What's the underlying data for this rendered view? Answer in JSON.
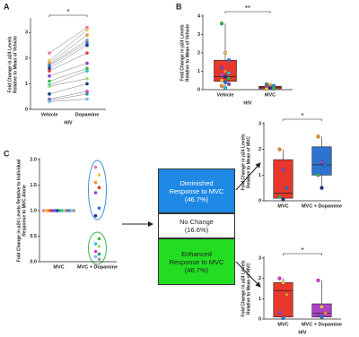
{
  "chart_data": [
    {
      "type": "line",
      "panel": "A",
      "categories": [
        "Vehicle",
        "Dopamine"
      ],
      "xlabel": "HIV",
      "ylabel": [
        "Fold Change in p24 Levels",
        "Relative to Mean of Vehicle"
      ],
      "ylim": [
        0,
        3.5
      ],
      "yticks": [
        0,
        1,
        2,
        3
      ],
      "annotation": "*",
      "series": [
        {
          "color": "#f06fb0",
          "values": [
            2.2,
            3.2
          ]
        },
        {
          "color": "#f2c94c",
          "values": [
            1.9,
            3.1
          ]
        },
        {
          "color": "#f28c28",
          "values": [
            1.8,
            2.9
          ]
        },
        {
          "color": "#9a9a9a",
          "values": [
            1.75,
            2.7
          ]
        },
        {
          "color": "#2f6fd6",
          "values": [
            1.7,
            2.6
          ]
        },
        {
          "color": "#1c2f8c",
          "values": [
            1.6,
            2.5
          ]
        },
        {
          "color": "#e23a2e",
          "values": [
            1.5,
            2.2
          ]
        },
        {
          "color": "#8e44c8",
          "values": [
            1.3,
            1.8
          ]
        },
        {
          "color": "#3cb44b",
          "values": [
            1.1,
            1.6
          ]
        },
        {
          "color": "#27c2d6",
          "values": [
            0.95,
            1.5
          ]
        },
        {
          "color": "#9be06b",
          "values": [
            0.9,
            1.2
          ]
        },
        {
          "color": "#123a7a",
          "values": [
            0.6,
            1.0
          ]
        },
        {
          "color": "#d63bd6",
          "values": [
            0.4,
            0.7
          ]
        },
        {
          "color": "#1a9e8f",
          "values": [
            0.35,
            0.6
          ]
        },
        {
          "color": "#7fb8f0",
          "values": [
            0.3,
            0.4
          ]
        }
      ]
    },
    {
      "type": "box",
      "panel": "B",
      "categories": [
        "Vehicle",
        "MVC"
      ],
      "xlabel": "HIV",
      "ylabel": [
        "Fold Change in p24 Levels",
        "Relative to Mean of Vehicle"
      ],
      "ylim": [
        0,
        4
      ],
      "yticks": [
        0,
        1,
        2,
        3,
        4
      ],
      "annotation": "**",
      "box_colors": [
        "#e8372c",
        "#e8372c"
      ],
      "boxes": [
        {
          "min": 0.1,
          "q1": 0.45,
          "median": 0.7,
          "q3": 1.6,
          "max": 3.6
        },
        {
          "min": 0.0,
          "q1": 0.05,
          "median": 0.12,
          "q3": 0.18,
          "max": 0.3
        }
      ],
      "points": [
        [
          3.6,
          2.0,
          1.6,
          1.2,
          1.0,
          0.9,
          0.8,
          0.7,
          0.6,
          0.5,
          0.4,
          0.3,
          0.2,
          0.1
        ],
        [
          0.3,
          0.25,
          0.2,
          0.18,
          0.15,
          0.12,
          0.1,
          0.08,
          0.05,
          0.03
        ]
      ],
      "point_colors": [
        "#3cb44b",
        "#f2c94c",
        "#2f6fd6",
        "#8e44c8",
        "#f28c28",
        "#27c2d6",
        "#d63bd6",
        "#1c2f8c"
      ]
    },
    {
      "type": "dot",
      "panel": "C",
      "categories": [
        "MVC",
        "MVC + Dopamine"
      ],
      "ylabel": [
        "Fold Change in p24 Levels Relative to Individual",
        "Response to MVC Alone"
      ],
      "ylim": [
        0,
        2
      ],
      "yticks": [
        {
          "value": 0,
          "label": "0.0"
        },
        {
          "value": 0.5,
          "label": "0.5"
        },
        {
          "value": 1,
          "label": "1.0"
        },
        {
          "value": 1.5,
          "label": "1.5"
        },
        {
          "value": 2,
          "label": "2.0"
        }
      ],
      "points": [
        [
          1,
          1,
          1,
          1,
          1,
          1,
          1,
          1,
          1,
          1,
          1,
          1,
          1,
          1
        ],
        [
          1.85,
          1.7,
          1.55,
          1.45,
          1.35,
          1.05,
          0.9,
          0.45,
          0.35,
          0.3,
          0.2,
          0.15,
          0.1,
          0.05
        ]
      ],
      "point_colors": [
        "#f06fb0",
        "#f2c94c",
        "#f28c28",
        "#e23a2e",
        "#8e44c8",
        "#2f6fd6",
        "#1c2f8c",
        "#3cb44b",
        "#27c2d6",
        "#9be06b",
        "#d63bd6",
        "#1a9e8f",
        "#7fb8f0",
        "#9a9a9a"
      ]
    },
    {
      "type": "box",
      "categories": [
        "MVC",
        "MVC + Dopamine"
      ],
      "ylabel": [
        "Fold Change in p24 Levels",
        "Relative to Mean of MVC"
      ],
      "ylim": [
        0,
        3
      ],
      "yticks": [
        0,
        1,
        2,
        3
      ],
      "annotation": "*",
      "box_colors": [
        "#e8372c",
        "#2c73d2"
      ],
      "boxes": [
        {
          "min": 0.0,
          "q1": 0.1,
          "median": 0.3,
          "q3": 1.6,
          "max": 2.0
        },
        {
          "min": 0.5,
          "q1": 1.0,
          "median": 1.4,
          "q3": 2.1,
          "max": 2.5
        }
      ],
      "points": [
        [
          2.0,
          1.2,
          0.5,
          0.15,
          0.05
        ],
        [
          2.5,
          1.5,
          1.4,
          1.0,
          0.5
        ]
      ],
      "point_colors": [
        "#f28c28",
        "#8e44c8",
        "#2f6fd6",
        "#3cb44b",
        "#1c2f8c"
      ]
    },
    {
      "type": "box",
      "categories": [
        "MVC",
        "MVC + Dopamine"
      ],
      "xlabel": "HIV",
      "ylabel": [
        "Fold Change in p24 Levels",
        "Relative to Mean of MVC"
      ],
      "ylim": [
        0,
        3
      ],
      "yticks": [
        0,
        1,
        2,
        3
      ],
      "annotation": "*",
      "box_colors": [
        "#e8372c",
        "#b040c8"
      ],
      "boxes": [
        {
          "min": 0.0,
          "q1": 0.1,
          "median": 1.4,
          "q3": 1.8,
          "max": 2.0
        },
        {
          "min": 0.0,
          "q1": 0.1,
          "median": 0.3,
          "q3": 0.75,
          "max": 1.9
        }
      ],
      "points": [
        [
          2.0,
          1.8,
          1.2,
          0.3,
          0.05
        ],
        [
          1.9,
          0.6,
          0.3,
          0.2,
          0.1
        ]
      ],
      "point_colors": [
        "#d63bd6",
        "#f2c94c",
        "#f28c28",
        "#8e44c8",
        "#2f6fd6"
      ]
    }
  ],
  "diagram": {
    "boxes": [
      "Diminished Response to MVC (46.7%)",
      "No Change (16.6%)",
      "Enhanced Response to MVC (46.7%)"
    ]
  }
}
